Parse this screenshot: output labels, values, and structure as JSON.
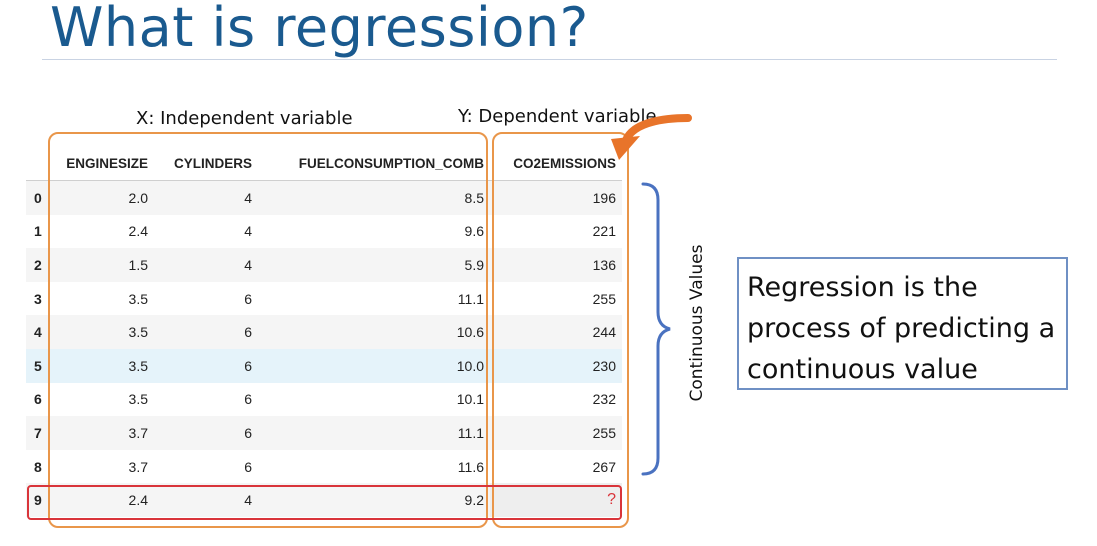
{
  "slide": {
    "title": "What is regression?",
    "x_label": "X: Independent variable",
    "y_label": "Y: Dependent variable",
    "continuous_label": "Continuous Values",
    "definition": "Regression is the process of predicting a continuous value"
  },
  "table": {
    "columns": [
      "ENGINESIZE",
      "CYLINDERS",
      "FUELCONSUMPTION_COMB",
      "CO2EMISSIONS"
    ],
    "rows": [
      {
        "index": "0",
        "enginesize": "2.0",
        "cylinders": "4",
        "fuel": "8.5",
        "co2": "196"
      },
      {
        "index": "1",
        "enginesize": "2.4",
        "cylinders": "4",
        "fuel": "9.6",
        "co2": "221"
      },
      {
        "index": "2",
        "enginesize": "1.5",
        "cylinders": "4",
        "fuel": "5.9",
        "co2": "136"
      },
      {
        "index": "3",
        "enginesize": "3.5",
        "cylinders": "6",
        "fuel": "11.1",
        "co2": "255"
      },
      {
        "index": "4",
        "enginesize": "3.5",
        "cylinders": "6",
        "fuel": "10.6",
        "co2": "244"
      },
      {
        "index": "5",
        "enginesize": "3.5",
        "cylinders": "6",
        "fuel": "10.0",
        "co2": "230"
      },
      {
        "index": "6",
        "enginesize": "3.5",
        "cylinders": "6",
        "fuel": "10.1",
        "co2": "232"
      },
      {
        "index": "7",
        "enginesize": "3.7",
        "cylinders": "6",
        "fuel": "11.1",
        "co2": "255"
      },
      {
        "index": "8",
        "enginesize": "3.7",
        "cylinders": "6",
        "fuel": "11.6",
        "co2": "267"
      },
      {
        "index": "9",
        "enginesize": "2.4",
        "cylinders": "4",
        "fuel": "9.2",
        "co2": "?"
      }
    ]
  },
  "colors": {
    "title": "#1a5a8f",
    "highlight_orange": "#e9964a",
    "arrow_orange": "#e8742a",
    "unknown_red": "#d9343a",
    "brace_blue": "#4a72c0",
    "definition_border": "#6f90c4"
  }
}
